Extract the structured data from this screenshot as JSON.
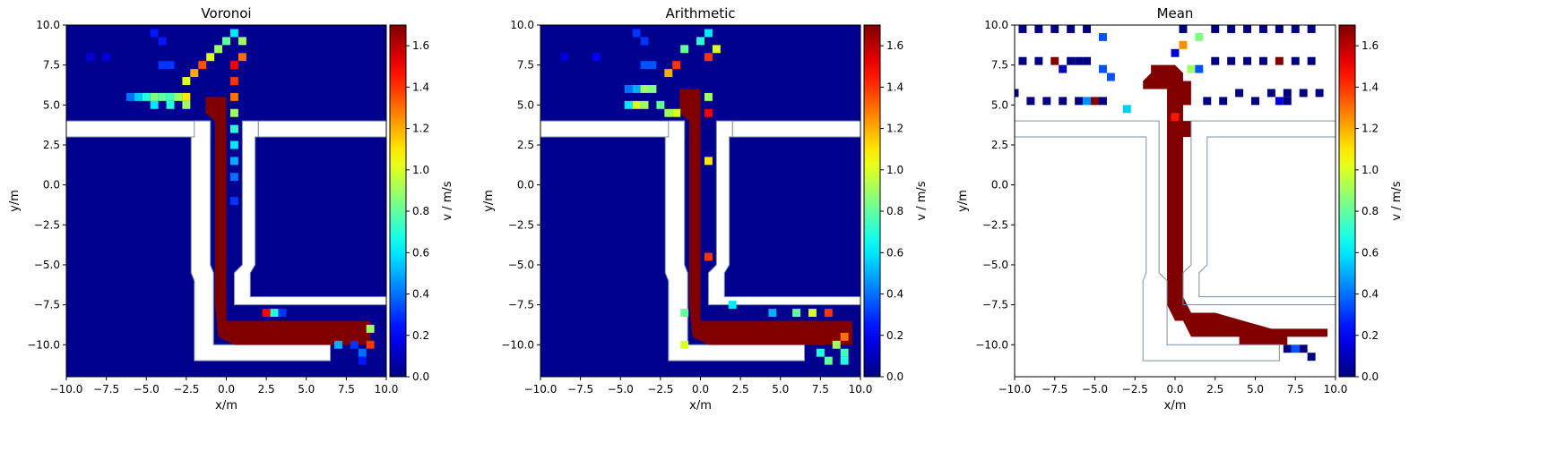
{
  "chart_data": [
    {
      "type": "heatmap",
      "title": "Voronoi",
      "xlabel": "x/m",
      "ylabel": "y/m",
      "xlim": [
        -10,
        10
      ],
      "ylim": [
        -12,
        10
      ],
      "xticks": [
        "−10.0",
        "−7.5",
        "−5.0",
        "−2.5",
        "0.0",
        "2.5",
        "5.0",
        "7.5",
        "10.0"
      ],
      "yticks": [
        "−10.0",
        "−7.5",
        "−5.0",
        "−2.5",
        "0.0",
        "2.5",
        "5.0",
        "7.5",
        "10.0"
      ],
      "background": "#00008f",
      "corridor_fill": "#ffffff",
      "walls": "#7b8fa6",
      "cells": [
        {
          "x": -8.5,
          "y": 8.0,
          "v": 0.15
        },
        {
          "x": -7.5,
          "y": 8.0,
          "v": 0.15
        },
        {
          "x": -4.5,
          "y": 9.5,
          "v": 0.25
        },
        {
          "x": -4.0,
          "y": 9.0,
          "v": 0.25
        },
        {
          "x": -4.0,
          "y": 7.5,
          "v": 0.3
        },
        {
          "x": -3.5,
          "y": 7.5,
          "v": 0.3
        },
        {
          "x": -6.0,
          "y": 5.5,
          "v": 0.4
        },
        {
          "x": -5.5,
          "y": 5.5,
          "v": 0.55
        },
        {
          "x": -5.0,
          "y": 5.5,
          "v": 0.7
        },
        {
          "x": -4.5,
          "y": 5.5,
          "v": 0.85
        },
        {
          "x": -4.0,
          "y": 5.5,
          "v": 0.8
        },
        {
          "x": -3.5,
          "y": 5.5,
          "v": 0.75
        },
        {
          "x": -3.0,
          "y": 5.5,
          "v": 0.9
        },
        {
          "x": -2.5,
          "y": 5.5,
          "v": 1.1
        },
        {
          "x": -4.5,
          "y": 5.0,
          "v": 0.6
        },
        {
          "x": -3.5,
          "y": 5.0,
          "v": 0.7
        },
        {
          "x": -2.5,
          "y": 5.0,
          "v": 0.9
        },
        {
          "x": -2.5,
          "y": 6.5,
          "v": 1.0
        },
        {
          "x": -2.0,
          "y": 7.0,
          "v": 1.2
        },
        {
          "x": -1.5,
          "y": 7.5,
          "v": 1.35
        },
        {
          "x": -1.0,
          "y": 8.0,
          "v": 1.0
        },
        {
          "x": -0.5,
          "y": 8.5,
          "v": 0.9
        },
        {
          "x": 0.0,
          "y": 9.0,
          "v": 0.8
        },
        {
          "x": 0.5,
          "y": 9.5,
          "v": 0.6
        },
        {
          "x": 1.0,
          "y": 9.0,
          "v": 0.9
        },
        {
          "x": 1.0,
          "y": 8.0,
          "v": 1.3
        },
        {
          "x": 0.5,
          "y": 7.5,
          "v": 1.5
        },
        {
          "x": 0.5,
          "y": 6.5,
          "v": 1.4
        },
        {
          "x": 0.5,
          "y": 5.5,
          "v": 1.3
        },
        {
          "x": 0.5,
          "y": 4.5,
          "v": 0.9
        },
        {
          "x": 0.5,
          "y": 3.5,
          "v": 0.7
        },
        {
          "x": 0.5,
          "y": 2.5,
          "v": 0.6
        },
        {
          "x": 0.5,
          "y": 1.5,
          "v": 0.5
        },
        {
          "x": 0.5,
          "y": 0.5,
          "v": 0.4
        },
        {
          "x": 0.5,
          "y": -1.0,
          "v": 0.3
        },
        {
          "x": 2.5,
          "y": -8.0,
          "v": 1.5
        },
        {
          "x": 3.0,
          "y": -8.0,
          "v": 0.7
        },
        {
          "x": 3.5,
          "y": -8.0,
          "v": 0.3
        },
        {
          "x": 7.0,
          "y": -10.0,
          "v": 0.5
        },
        {
          "x": 8.0,
          "y": -10.0,
          "v": 0.3
        },
        {
          "x": 8.5,
          "y": -10.5,
          "v": 0.4
        },
        {
          "x": 9.0,
          "y": -10.0,
          "v": 1.4
        },
        {
          "x": 9.0,
          "y": -9.0,
          "v": 0.9
        },
        {
          "x": 8.5,
          "y": -11.0,
          "v": 0.25
        }
      ],
      "path": [
        [
          -1.3,
          5.5
        ],
        [
          0.0,
          5.5
        ],
        [
          0.0,
          4.0
        ],
        [
          0.0,
          -8.5
        ],
        [
          9.0,
          -8.5
        ],
        [
          9.0,
          -10.0
        ],
        [
          0.5,
          -10.0
        ],
        [
          -0.5,
          -9.5
        ],
        [
          -0.7,
          -7.5
        ],
        [
          -0.7,
          4.0
        ],
        [
          -1.3,
          4.5
        ]
      ],
      "legend_colorbar": {
        "label": "v / m/s",
        "min": 0.0,
        "max": 1.7,
        "ticks": [
          "0.0",
          "0.2",
          "0.4",
          "0.6",
          "0.8",
          "1.0",
          "1.2",
          "1.4",
          "1.6"
        ]
      }
    },
    {
      "type": "heatmap",
      "title": "Arithmetic",
      "xlabel": "x/m",
      "ylabel": "y/m",
      "xlim": [
        -10,
        10
      ],
      "ylim": [
        -12,
        10
      ],
      "xticks": [
        "−10.0",
        "−7.5",
        "−5.0",
        "−2.5",
        "0.0",
        "2.5",
        "5.0",
        "7.5",
        "10.0"
      ],
      "yticks": [
        "−10.0",
        "−7.5",
        "−5.0",
        "−2.5",
        "0.0",
        "2.5",
        "5.0",
        "7.5",
        "10.0"
      ],
      "background": "#00008f",
      "corridor_fill": "#ffffff",
      "walls": "#7b8fa6",
      "cells": [
        {
          "x": -8.5,
          "y": 8.0,
          "v": 0.15
        },
        {
          "x": -6.5,
          "y": 8.0,
          "v": 0.2
        },
        {
          "x": -4.0,
          "y": 9.5,
          "v": 0.3
        },
        {
          "x": -3.5,
          "y": 9.0,
          "v": 0.3
        },
        {
          "x": -3.5,
          "y": 7.5,
          "v": 0.35
        },
        {
          "x": -3.0,
          "y": 7.5,
          "v": 0.35
        },
        {
          "x": -4.5,
          "y": 6.0,
          "v": 0.4
        },
        {
          "x": -4.0,
          "y": 6.0,
          "v": 0.5
        },
        {
          "x": -3.5,
          "y": 6.0,
          "v": 0.9
        },
        {
          "x": -3.0,
          "y": 6.0,
          "v": 0.85
        },
        {
          "x": -4.5,
          "y": 5.0,
          "v": 0.6
        },
        {
          "x": -4.0,
          "y": 5.0,
          "v": 1.0
        },
        {
          "x": -3.5,
          "y": 5.0,
          "v": 0.9
        },
        {
          "x": -2.5,
          "y": 5.0,
          "v": 0.8
        },
        {
          "x": -2.0,
          "y": 4.5,
          "v": 0.9
        },
        {
          "x": -1.5,
          "y": 4.5,
          "v": 1.0
        },
        {
          "x": -2.0,
          "y": 7.0,
          "v": 1.2
        },
        {
          "x": -1.5,
          "y": 7.5,
          "v": 1.4
        },
        {
          "x": -1.0,
          "y": 8.5,
          "v": 0.8
        },
        {
          "x": 0.0,
          "y": 9.0,
          "v": 0.7
        },
        {
          "x": 0.5,
          "y": 9.5,
          "v": 0.6
        },
        {
          "x": 1.0,
          "y": 8.5,
          "v": 1.0
        },
        {
          "x": 0.5,
          "y": 8.0,
          "v": 1.4
        },
        {
          "x": 0.5,
          "y": 5.5,
          "v": 0.9
        },
        {
          "x": 0.5,
          "y": 4.5,
          "v": 1.5
        },
        {
          "x": 0.5,
          "y": 1.5,
          "v": 1.1
        },
        {
          "x": 0.5,
          "y": -4.5,
          "v": 1.4
        },
        {
          "x": 2.0,
          "y": -7.5,
          "v": 0.6
        },
        {
          "x": 4.5,
          "y": -8.0,
          "v": 0.5
        },
        {
          "x": 6.0,
          "y": -8.0,
          "v": 0.8
        },
        {
          "x": 7.0,
          "y": -8.0,
          "v": 1.0
        },
        {
          "x": 8.0,
          "y": -8.0,
          "v": 1.4
        },
        {
          "x": 9.0,
          "y": -9.5,
          "v": 1.3
        },
        {
          "x": 8.5,
          "y": -10.0,
          "v": 0.9
        },
        {
          "x": 7.5,
          "y": -10.5,
          "v": 0.7
        },
        {
          "x": 8.0,
          "y": -11.0,
          "v": 0.8
        },
        {
          "x": 9.0,
          "y": -10.5,
          "v": 0.75
        },
        {
          "x": 9.0,
          "y": -11.0,
          "v": 0.7
        },
        {
          "x": -1.0,
          "y": -8.0,
          "v": 0.8
        },
        {
          "x": -1.0,
          "y": -10.0,
          "v": 1.0
        }
      ],
      "path": [
        [
          -1.3,
          6.0
        ],
        [
          0.0,
          6.0
        ],
        [
          0.0,
          4.0
        ],
        [
          0.0,
          -8.5
        ],
        [
          9.5,
          -8.5
        ],
        [
          9.5,
          -10.0
        ],
        [
          0.5,
          -10.0
        ],
        [
          -0.5,
          -9.5
        ],
        [
          -0.7,
          -7.5
        ],
        [
          -0.7,
          4.0
        ],
        [
          -1.3,
          4.5
        ]
      ],
      "legend_colorbar": {
        "label": "v / m/s",
        "min": 0.0,
        "max": 1.7,
        "ticks": [
          "0.0",
          "0.2",
          "0.4",
          "0.6",
          "0.8",
          "1.0",
          "1.2",
          "1.4",
          "1.6"
        ]
      }
    },
    {
      "type": "heatmap",
      "title": "Mean",
      "xlabel": "x/m",
      "ylabel": "y/m",
      "xlim": [
        -10,
        10
      ],
      "ylim": [
        -12,
        10
      ],
      "xticks": [
        "−10.0",
        "−7.5",
        "−5.0",
        "−2.5",
        "0.0",
        "2.5",
        "5.0",
        "7.5",
        "10.0"
      ],
      "yticks": [
        "−10.0",
        "−7.5",
        "−5.0",
        "−2.5",
        "0.0",
        "2.5",
        "5.0",
        "7.5",
        "10.0"
      ],
      "background": "#ffffff",
      "corridor_fill": "none",
      "walls": "#7b8fa6",
      "cells": [
        {
          "x": -9.5,
          "y": 9.75,
          "v": 0.0
        },
        {
          "x": -8.5,
          "y": 9.75,
          "v": 0.0
        },
        {
          "x": -7.5,
          "y": 9.75,
          "v": 0.0
        },
        {
          "x": -6.5,
          "y": 9.75,
          "v": 0.0
        },
        {
          "x": -5.5,
          "y": 9.75,
          "v": 0.0
        },
        {
          "x": 0.5,
          "y": 9.75,
          "v": 0.0
        },
        {
          "x": 2.5,
          "y": 9.75,
          "v": 0.0
        },
        {
          "x": 3.5,
          "y": 9.75,
          "v": 0.0
        },
        {
          "x": 4.5,
          "y": 9.75,
          "v": 0.0
        },
        {
          "x": 5.5,
          "y": 9.75,
          "v": 0.0
        },
        {
          "x": 6.5,
          "y": 9.75,
          "v": 0.0
        },
        {
          "x": 7.5,
          "y": 9.75,
          "v": 0.0
        },
        {
          "x": 8.5,
          "y": 9.75,
          "v": 0.0
        },
        {
          "x": -4.5,
          "y": 9.25,
          "v": 0.35
        },
        {
          "x": 1.5,
          "y": 9.25,
          "v": 0.85
        },
        {
          "x": 0.5,
          "y": 8.75,
          "v": 1.25
        },
        {
          "x": 0.0,
          "y": 8.25,
          "v": 0.15
        },
        {
          "x": -9.5,
          "y": 7.75,
          "v": 0.0
        },
        {
          "x": -8.5,
          "y": 7.75,
          "v": 0.0
        },
        {
          "x": -7.5,
          "y": 7.75,
          "v": 1.7
        },
        {
          "x": -6.5,
          "y": 7.75,
          "v": 0.0
        },
        {
          "x": -6.0,
          "y": 7.75,
          "v": 0.0
        },
        {
          "x": -5.5,
          "y": 7.75,
          "v": 0.0
        },
        {
          "x": -7.0,
          "y": 7.25,
          "v": 0.1
        },
        {
          "x": -4.5,
          "y": 7.25,
          "v": 0.35
        },
        {
          "x": -4.0,
          "y": 6.75,
          "v": 0.35
        },
        {
          "x": 1.0,
          "y": 7.25,
          "v": 0.9
        },
        {
          "x": 1.5,
          "y": 7.25,
          "v": 0.35
        },
        {
          "x": 2.5,
          "y": 7.75,
          "v": 0.0
        },
        {
          "x": 3.5,
          "y": 7.75,
          "v": 0.0
        },
        {
          "x": 4.5,
          "y": 7.75,
          "v": 0.0
        },
        {
          "x": 5.5,
          "y": 7.75,
          "v": 0.0
        },
        {
          "x": 6.5,
          "y": 7.75,
          "v": 1.7
        },
        {
          "x": 7.5,
          "y": 7.75,
          "v": 0.0
        },
        {
          "x": 8.5,
          "y": 7.75,
          "v": 0.0
        },
        {
          "x": -10.0,
          "y": 5.75,
          "v": 0.0
        },
        {
          "x": 4.0,
          "y": 5.75,
          "v": 0.0
        },
        {
          "x": 6.0,
          "y": 5.75,
          "v": 0.0
        },
        {
          "x": 7.0,
          "y": 5.75,
          "v": 0.0
        },
        {
          "x": 8.0,
          "y": 5.75,
          "v": 0.0
        },
        {
          "x": 9.0,
          "y": 5.75,
          "v": 0.0
        },
        {
          "x": -9.0,
          "y": 5.25,
          "v": 0.0
        },
        {
          "x": -8.0,
          "y": 5.25,
          "v": 0.0
        },
        {
          "x": -7.0,
          "y": 5.25,
          "v": 0.0
        },
        {
          "x": -6.0,
          "y": 5.25,
          "v": 0.0
        },
        {
          "x": -5.5,
          "y": 5.25,
          "v": 0.45
        },
        {
          "x": -5.0,
          "y": 5.25,
          "v": 1.7
        },
        {
          "x": -4.5,
          "y": 5.25,
          "v": 0.0
        },
        {
          "x": 2.0,
          "y": 5.25,
          "v": 0.0
        },
        {
          "x": 3.0,
          "y": 5.25,
          "v": 0.0
        },
        {
          "x": 5.0,
          "y": 5.25,
          "v": 0.0
        },
        {
          "x": 6.5,
          "y": 5.25,
          "v": 0.15
        },
        {
          "x": 7.0,
          "y": 5.25,
          "v": 0.0
        },
        {
          "x": -3.0,
          "y": 4.75,
          "v": 0.55
        },
        {
          "x": 0.0,
          "y": 4.25,
          "v": 1.45
        },
        {
          "x": 0.0,
          "y": 0.25,
          "v": 1.7
        },
        {
          "x": 7.0,
          "y": -10.25,
          "v": 0.0
        },
        {
          "x": 7.5,
          "y": -10.25,
          "v": 0.35
        },
        {
          "x": 8.0,
          "y": -10.25,
          "v": 0.0
        },
        {
          "x": 8.5,
          "y": -10.75,
          "v": 0.0
        }
      ],
      "path": [
        [
          -1.5,
          7.5
        ],
        [
          -1.0,
          7.5
        ],
        [
          -0.5,
          7.5
        ],
        [
          0.0,
          7.5
        ],
        [
          0.5,
          7.0
        ],
        [
          0.5,
          6.5
        ],
        [
          1.0,
          6.5
        ],
        [
          1.0,
          5.0
        ],
        [
          0.5,
          5.0
        ],
        [
          0.5,
          4.0
        ],
        [
          1.0,
          4.0
        ],
        [
          1.0,
          3.0
        ],
        [
          0.5,
          3.0
        ],
        [
          0.5,
          -7.0
        ],
        [
          1.0,
          -8.0
        ],
        [
          2.5,
          -8.0
        ],
        [
          6.0,
          -9.0
        ],
        [
          9.5,
          -9.0
        ],
        [
          9.5,
          -9.5
        ],
        [
          7.0,
          -9.5
        ],
        [
          7.0,
          -10.0
        ],
        [
          4.0,
          -10.0
        ],
        [
          4.0,
          -9.5
        ],
        [
          1.0,
          -9.5
        ],
        [
          0.5,
          -8.5
        ],
        [
          0.0,
          -8.5
        ],
        [
          -0.5,
          -7.5
        ],
        [
          -0.5,
          0.0
        ],
        [
          -0.5,
          6.0
        ],
        [
          -2.0,
          6.0
        ],
        [
          -2.0,
          6.5
        ],
        [
          -1.5,
          7.0
        ]
      ],
      "legend_colorbar": {
        "label": "v / m/s",
        "min": 0.0,
        "max": 1.7,
        "ticks": [
          "0.0",
          "0.2",
          "0.4",
          "0.6",
          "0.8",
          "1.0",
          "1.2",
          "1.4",
          "1.6"
        ]
      }
    }
  ]
}
